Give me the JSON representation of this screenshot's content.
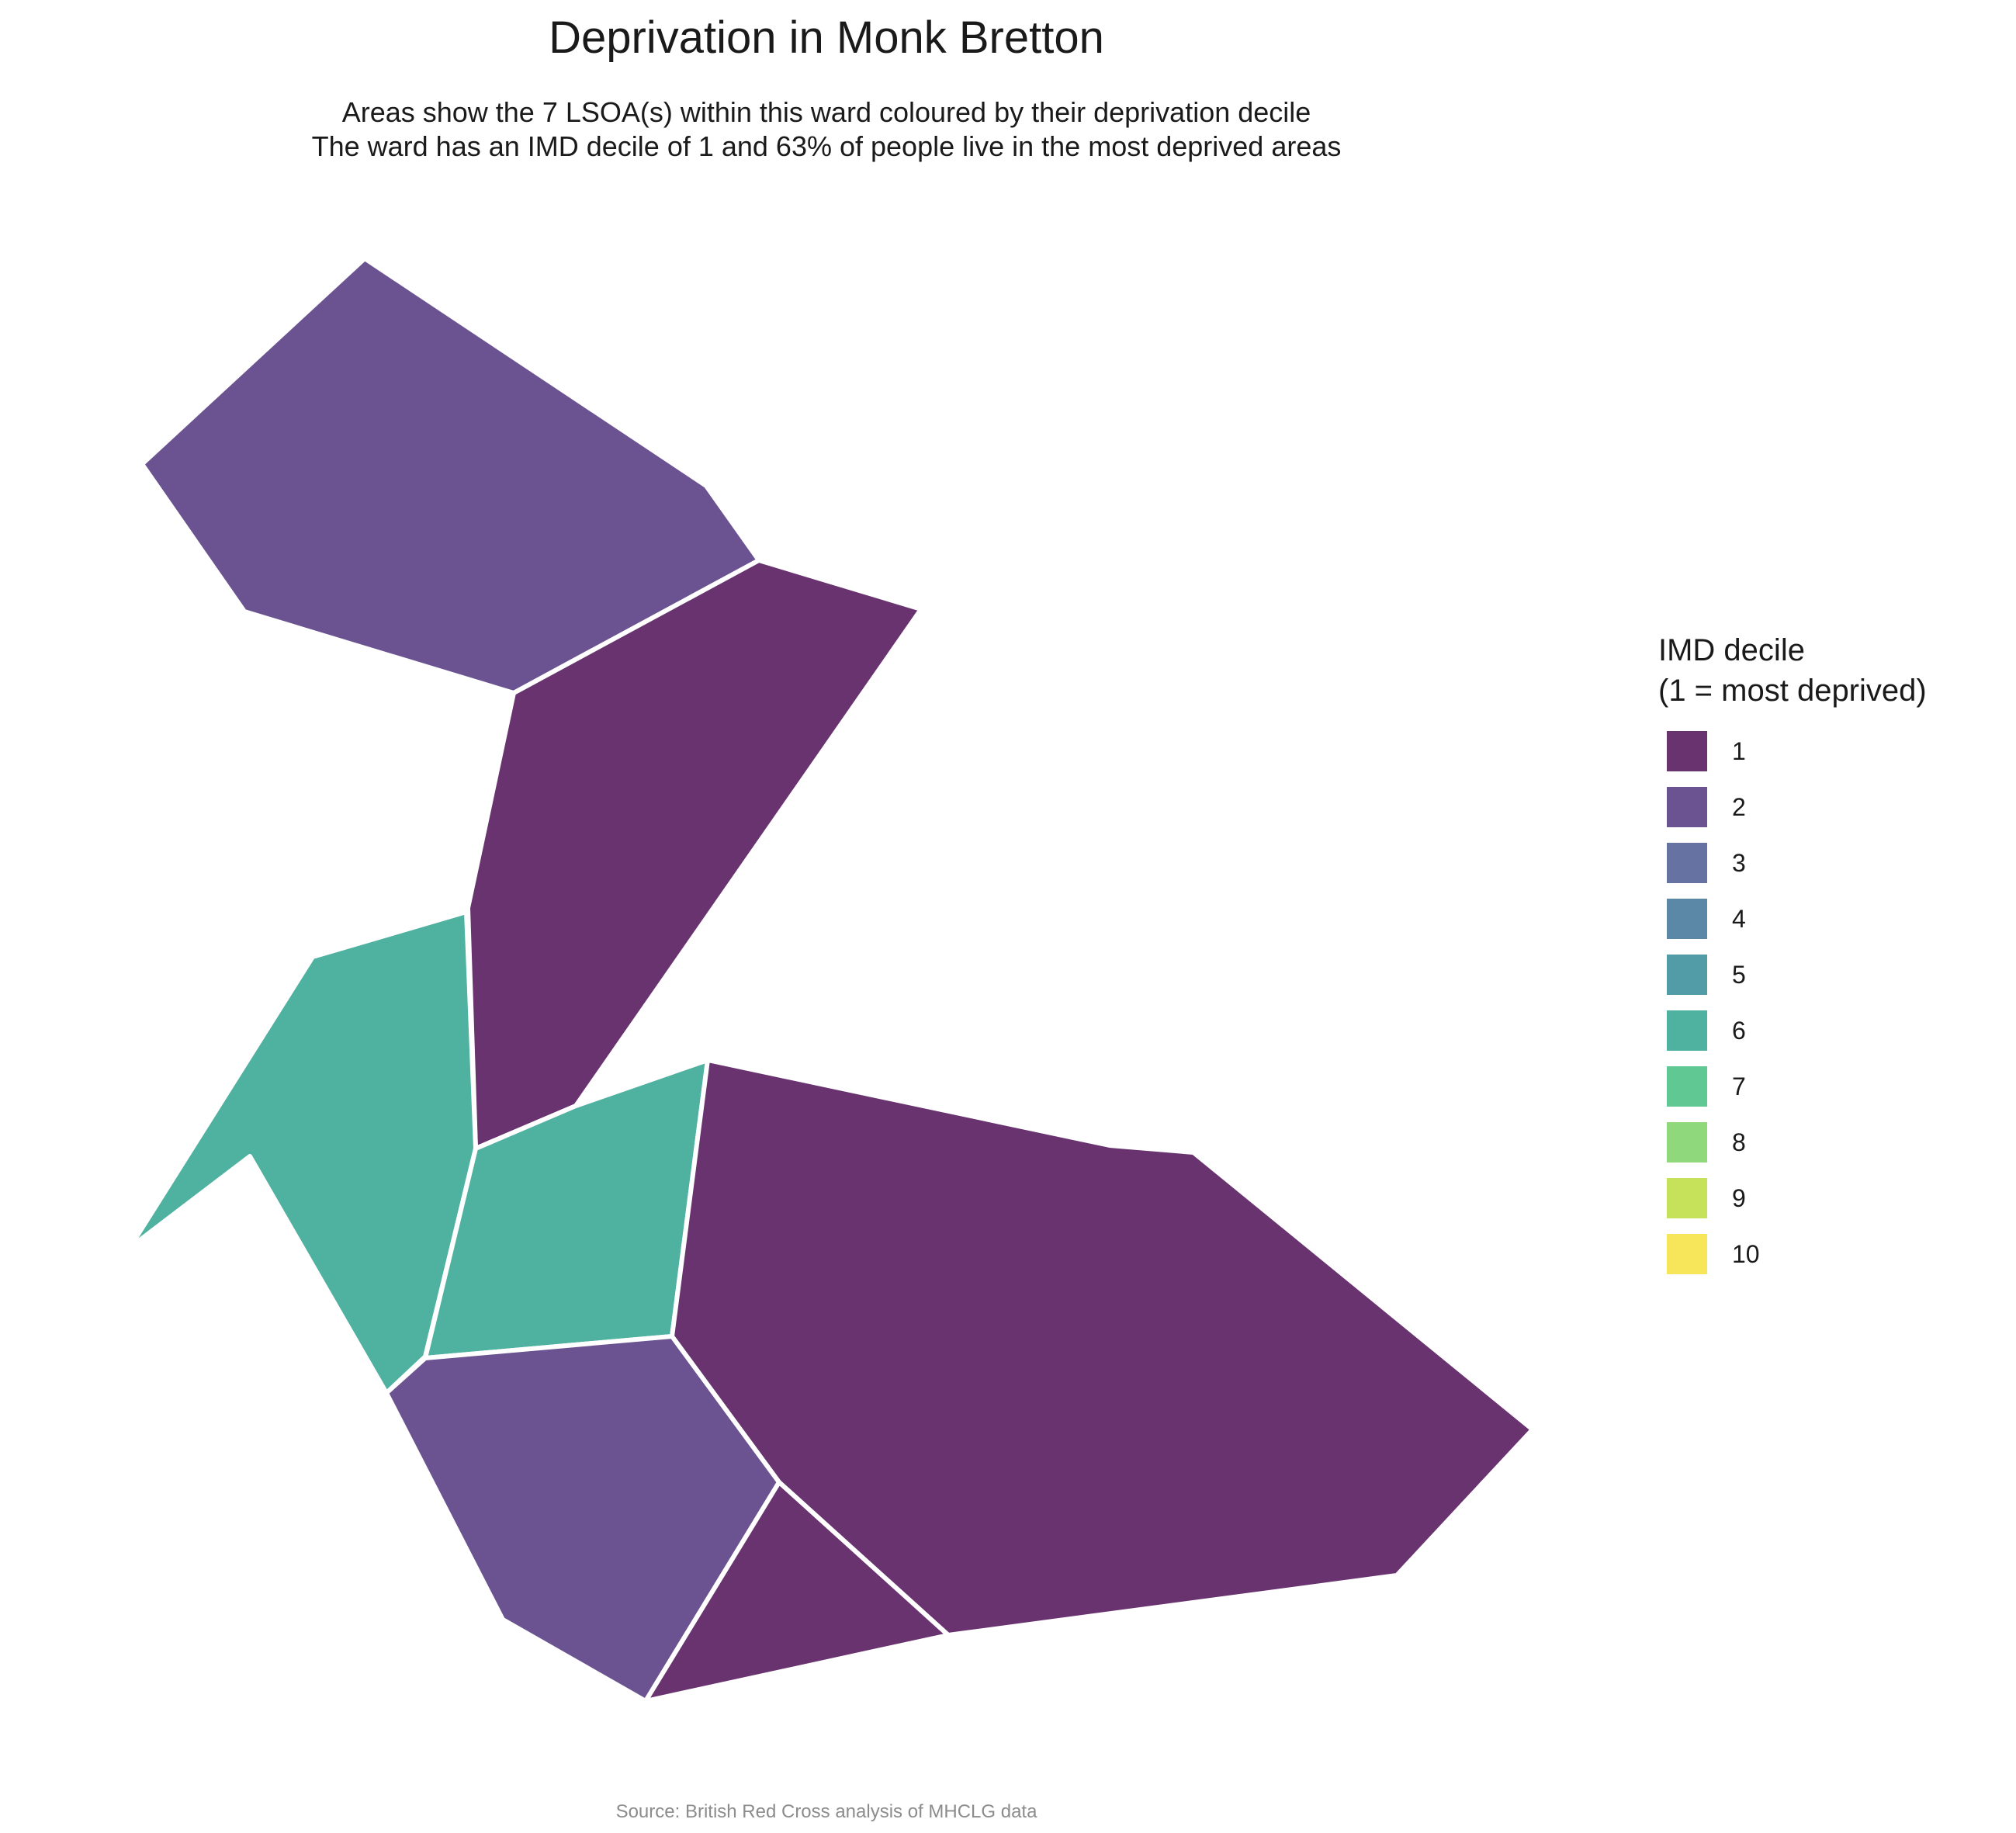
{
  "title": "Deprivation in Monk Bretton",
  "subtitle": {
    "line1": "Areas show the 7 LSOA(s) within this ward coloured by their deprivation decile",
    "line2": "The ward has an IMD decile of 1 and 63% of people live in the most deprived areas"
  },
  "caption": "Source: British Red Cross analysis of MHCLG data",
  "caption_color": "#8c8c8c",
  "legend": {
    "title_line1": "IMD decile",
    "title_line2": "(1 = most deprived)",
    "items": [
      {
        "label": "1",
        "color": "#68336f"
      },
      {
        "label": "2",
        "color": "#6b5391"
      },
      {
        "label": "3",
        "color": "#6672a2"
      },
      {
        "label": "4",
        "color": "#5a88a6"
      },
      {
        "label": "5",
        "color": "#519ca7"
      },
      {
        "label": "6",
        "color": "#4fb1a0"
      },
      {
        "label": "7",
        "color": "#60c893"
      },
      {
        "label": "8",
        "color": "#8fd87c"
      },
      {
        "label": "9",
        "color": "#c5e25a"
      },
      {
        "label": "10",
        "color": "#f8e65a"
      }
    ]
  },
  "map": {
    "areas": [
      {
        "name": "lsoa-north-west",
        "decile": 2
      },
      {
        "name": "lsoa-north-central",
        "decile": 1
      },
      {
        "name": "lsoa-west",
        "decile": 6
      },
      {
        "name": "lsoa-central",
        "decile": 6
      },
      {
        "name": "lsoa-east",
        "decile": 1
      },
      {
        "name": "lsoa-south-west",
        "decile": 2
      },
      {
        "name": "lsoa-south",
        "decile": 1
      }
    ]
  }
}
